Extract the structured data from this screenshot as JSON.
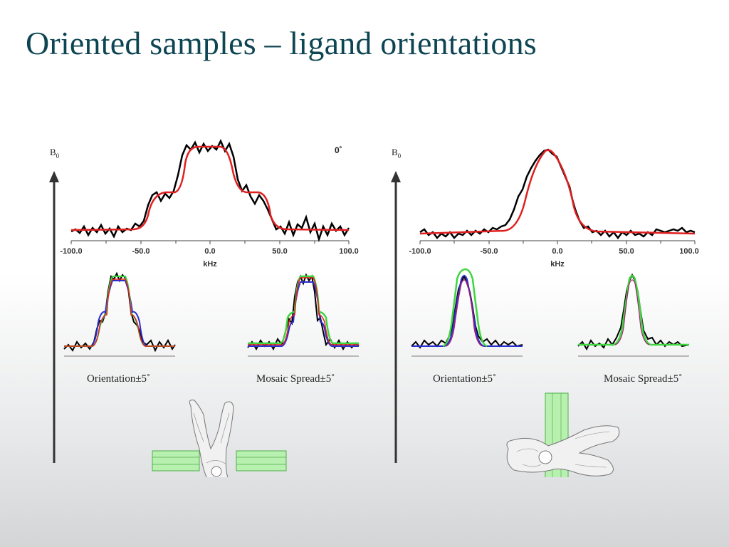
{
  "slide": {
    "title": "Oriented samples – ligand orientations"
  },
  "panels": [
    {
      "field_label": "B",
      "field_subscript": "0",
      "angle_label": "0˚",
      "main_xlabel": "kHz",
      "main_ticks": [
        "-100.0",
        "-50.0",
        "0.0",
        "50.0",
        "100.0"
      ],
      "inset_left_caption": "Orientation±5˚",
      "inset_right_caption": "Mosaic Spread±5˚"
    },
    {
      "field_label": "B",
      "field_subscript": "0",
      "main_xlabel": "kHz",
      "main_ticks": [
        "-100.0",
        "-50.0",
        "0.0",
        "50.0",
        "100.0"
      ],
      "inset_left_caption": "Orientation±5˚",
      "inset_right_caption": "Mosaic Spread±5˚"
    }
  ],
  "colors": {
    "title": "#0d4552",
    "experiment": "#000000",
    "fit": "#e01f1f",
    "fit_minus": "#2a2fd0",
    "fit_plus": "#3ed63e",
    "arrow": "#333333"
  }
}
